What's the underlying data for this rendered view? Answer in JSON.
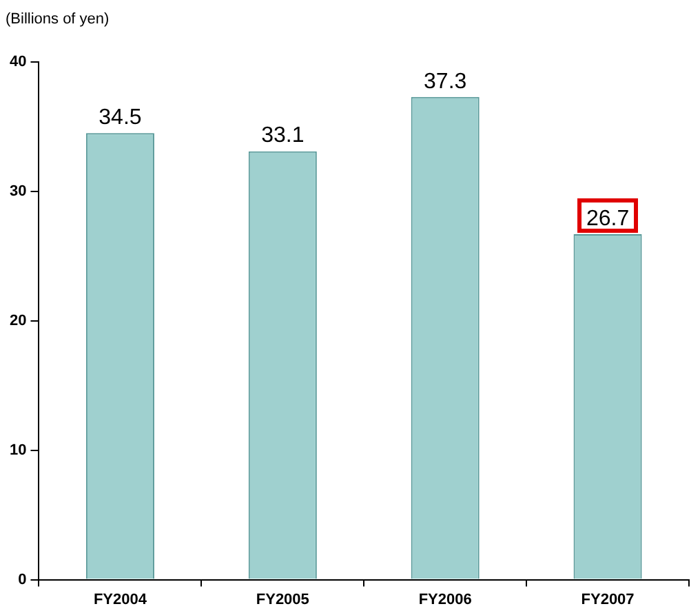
{
  "chart_data": {
    "type": "bar",
    "ylabel": "(Billions of yen)",
    "categories": [
      "FY2004",
      "FY2005",
      "FY2006",
      "FY2007"
    ],
    "values": [
      34.5,
      33.1,
      37.3,
      26.7
    ],
    "color": "#9fd0cf",
    "ylim": [
      0,
      40
    ],
    "yticks": [
      0,
      10,
      20,
      30,
      40
    ],
    "grid": false,
    "legend": false,
    "data_labels": true
  }
}
